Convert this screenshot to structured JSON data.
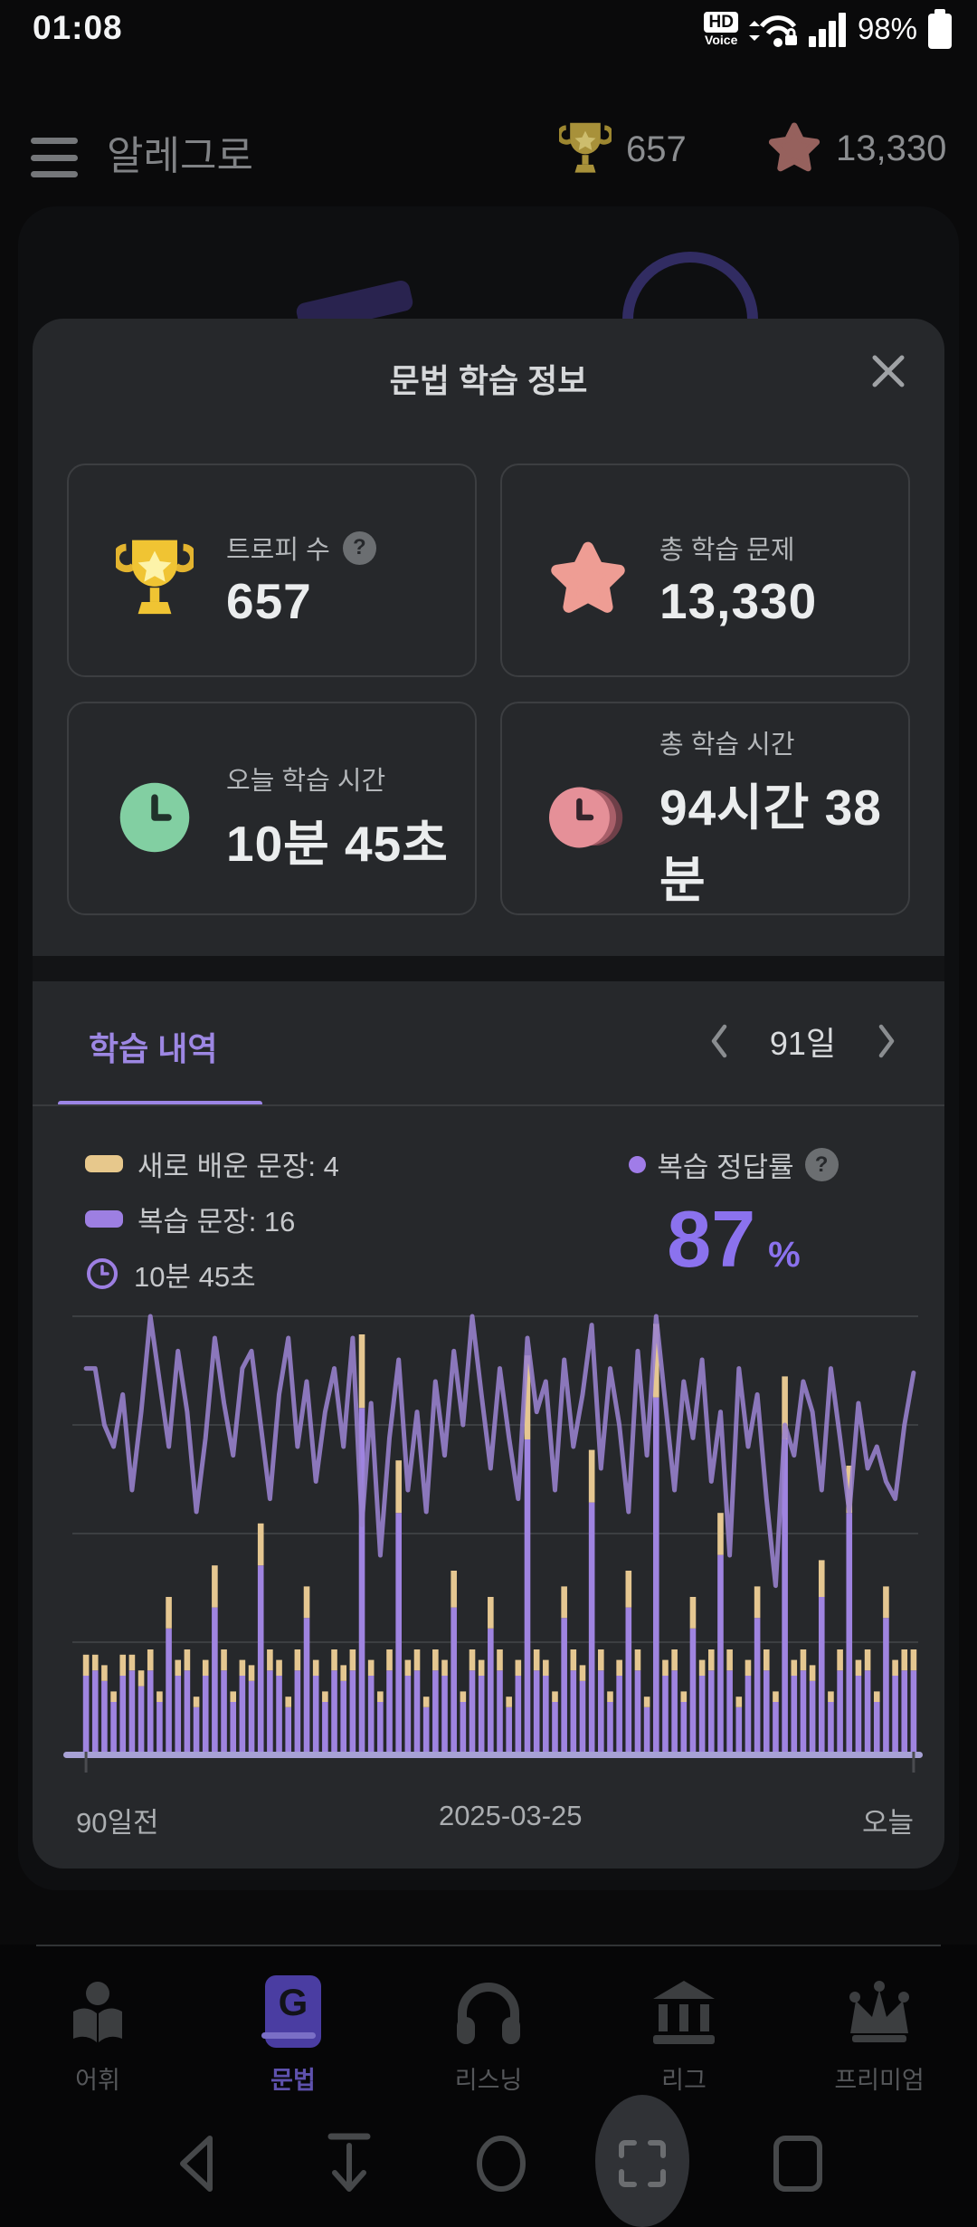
{
  "status_bar": {
    "time": "01:08",
    "hd": "HD",
    "hd_voice": "Voice",
    "battery": "98%"
  },
  "header": {
    "title": "알레그로",
    "trophy_count": "657",
    "star_count": "13,330"
  },
  "modal": {
    "title": "문법 학습 정보",
    "cards": [
      {
        "label": "트로피 수",
        "value": "657",
        "help": "?"
      },
      {
        "label": "총 학습 문제",
        "value": "13,330"
      },
      {
        "label": "오늘 학습 시간",
        "value": "10분 45초"
      },
      {
        "label": "총 학습 시간",
        "value": "94시간 38분"
      }
    ],
    "history": {
      "tab_label": "학습 내역",
      "range_label": "91일",
      "legend_new": "새로 배운 문장: 4",
      "legend_review": "복습 문장: 16",
      "legend_time": "10분 45초",
      "accuracy_label": "복습 정답률",
      "accuracy_help": "?",
      "accuracy_value": "87",
      "accuracy_unit": "%"
    }
  },
  "chart_data": {
    "type": "bar+line",
    "days": 91,
    "x_labels": [
      "90일전",
      "2025-03-25",
      "오늘"
    ],
    "ylim_line_pct": [
      0,
      100
    ],
    "gridlines_pct": [
      100,
      75,
      50,
      25
    ],
    "legend_position": "top",
    "bar_series": [
      {
        "name": "복습 문장",
        "color": "#9f84e0",
        "values": [
          15,
          16,
          14,
          10,
          15,
          16,
          13,
          16,
          10,
          24,
          15,
          16,
          9,
          15,
          28,
          16,
          10,
          15,
          14,
          36,
          16,
          15,
          9,
          16,
          26,
          15,
          10,
          16,
          14,
          16,
          66,
          15,
          10,
          16,
          46,
          15,
          16,
          9,
          16,
          15,
          28,
          10,
          16,
          15,
          24,
          16,
          9,
          15,
          60,
          16,
          15,
          10,
          26,
          16,
          14,
          48,
          16,
          10,
          15,
          28,
          16,
          9,
          68,
          15,
          16,
          10,
          24,
          15,
          16,
          38,
          16,
          9,
          15,
          26,
          16,
          10,
          60,
          15,
          16,
          14,
          30,
          10,
          16,
          46,
          15,
          16,
          10,
          26,
          15,
          16,
          16
        ]
      },
      {
        "name": "새로 배운 문장",
        "color": "#e5c791",
        "values": [
          4,
          3,
          3,
          2,
          4,
          3,
          3,
          4,
          2,
          6,
          3,
          4,
          2,
          3,
          8,
          4,
          2,
          3,
          3,
          8,
          4,
          3,
          2,
          4,
          6,
          3,
          2,
          4,
          3,
          4,
          14,
          3,
          2,
          4,
          10,
          3,
          4,
          2,
          4,
          3,
          7,
          2,
          4,
          3,
          6,
          4,
          2,
          3,
          16,
          4,
          3,
          2,
          6,
          4,
          3,
          10,
          4,
          2,
          3,
          7,
          4,
          2,
          14,
          3,
          4,
          2,
          6,
          3,
          4,
          8,
          4,
          2,
          3,
          6,
          4,
          2,
          12,
          3,
          4,
          3,
          7,
          2,
          4,
          9,
          3,
          4,
          2,
          6,
          3,
          4,
          4
        ]
      }
    ],
    "line_series": {
      "name": "복습 정답률",
      "unit": "%",
      "color": "#9a82cf",
      "values": [
        88,
        88,
        75,
        70,
        82,
        60,
        78,
        100,
        85,
        70,
        92,
        78,
        55,
        72,
        95,
        80,
        68,
        88,
        92,
        75,
        58,
        82,
        95,
        70,
        85,
        62,
        78,
        88,
        70,
        95,
        52,
        80,
        45,
        72,
        90,
        60,
        78,
        55,
        85,
        68,
        92,
        75,
        100,
        82,
        65,
        88,
        72,
        58,
        95,
        78,
        85,
        60,
        90,
        70,
        82,
        98,
        65,
        88,
        75,
        55,
        92,
        68,
        100,
        80,
        60,
        85,
        72,
        90,
        62,
        78,
        45,
        88,
        70,
        82,
        58,
        38,
        75,
        68,
        85,
        78,
        60,
        88,
        72,
        55,
        80,
        65,
        70,
        62,
        58,
        75,
        87
      ]
    },
    "today": {
      "new_sentences": 4,
      "review_sentences": 16,
      "accuracy_pct": 87,
      "study_time": "10분 45초"
    },
    "axis_color": "#a7a1d5",
    "grid_color": "#3c3f42"
  },
  "bottom_nav": {
    "items": [
      {
        "label": "어휘"
      },
      {
        "label": "문법",
        "active": true,
        "book_letter": "G"
      },
      {
        "label": "리스닝"
      },
      {
        "label": "리그"
      },
      {
        "label": "프리미엄"
      }
    ]
  },
  "colors": {
    "accent_purple": "#8b72ee",
    "bar_purple": "#9f84e0",
    "bar_yellow": "#e5c791",
    "trophy_gold": "#edbf3a",
    "star_salmon": "#ee9d94",
    "clock_green": "#82cfa2",
    "clock_pink": "#e59098",
    "modal_bg": "#26282b",
    "card_border": "#3c3e41"
  }
}
